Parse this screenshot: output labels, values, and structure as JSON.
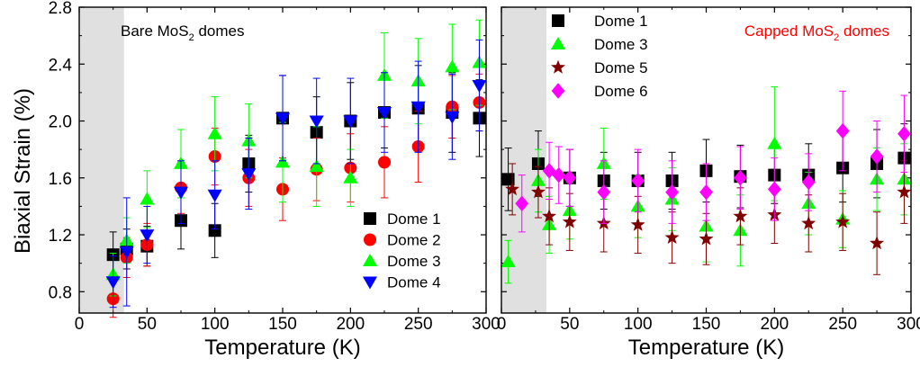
{
  "chart_data": [
    {
      "type": "scatter",
      "panel_label": "Bare MoS",
      "panel_label_sub": "2",
      "panel_label_suffix": " domes",
      "panel_label_color": "#000000",
      "xlabel": "Temperature (K)",
      "ylabel": "Biaxial Strain (%)",
      "xlim": [
        0,
        300
      ],
      "ylim": [
        0.65,
        2.8
      ],
      "xticks": [
        0,
        50,
        100,
        150,
        200,
        250,
        300
      ],
      "yticks": [
        0.8,
        1.2,
        1.6,
        2.0,
        2.4,
        2.8
      ],
      "ytick_labels": [
        "0.8",
        "1.2",
        "1.6",
        "2.0",
        "2.4",
        "2.8"
      ],
      "shaded_region": [
        0,
        33
      ],
      "legend_position": "lower-right",
      "series": [
        {
          "name": "Dome 1",
          "marker": "square",
          "color": "#000000",
          "x": [
            25,
            35,
            50,
            75,
            100,
            125,
            150,
            175,
            200,
            225,
            250,
            275,
            295
          ],
          "y": [
            1.06,
            1.1,
            1.12,
            1.3,
            1.23,
            1.7,
            2.02,
            1.92,
            2.0,
            2.06,
            2.09,
            2.06,
            2.02
          ],
          "err": [
            0.16,
            0.14,
            0.14,
            0.2,
            0.19,
            0.2,
            0.3,
            0.25,
            0.27,
            0.25,
            0.3,
            0.28,
            0.27
          ]
        },
        {
          "name": "Dome 2",
          "marker": "circle",
          "color": "#ff0000",
          "x": [
            25,
            35,
            50,
            75,
            100,
            125,
            150,
            175,
            200,
            225,
            250,
            275,
            295
          ],
          "y": [
            0.75,
            1.04,
            1.13,
            1.53,
            1.75,
            1.6,
            1.52,
            1.66,
            1.67,
            1.71,
            1.82,
            2.1,
            2.13
          ],
          "err": [
            0.13,
            0.14,
            0.15,
            0.18,
            0.2,
            0.2,
            0.22,
            0.22,
            0.24,
            0.25,
            0.25,
            0.22,
            0.2
          ]
        },
        {
          "name": "Dome 3",
          "marker": "triangle-up",
          "color": "#00ff00",
          "x": [
            25,
            35,
            50,
            75,
            100,
            125,
            150,
            175,
            200,
            225,
            250,
            275,
            295
          ],
          "y": [
            0.92,
            1.16,
            1.45,
            1.7,
            1.91,
            1.86,
            1.71,
            1.68,
            1.6,
            2.32,
            2.28,
            2.38,
            2.41
          ],
          "err": [
            0.15,
            0.16,
            0.2,
            0.24,
            0.26,
            0.26,
            0.28,
            0.28,
            0.2,
            0.3,
            0.3,
            0.3,
            0.3
          ]
        },
        {
          "name": "Dome 4",
          "marker": "triangle-down",
          "color": "#0000ff",
          "x": [
            25,
            35,
            50,
            75,
            100,
            125,
            150,
            175,
            200,
            225,
            250,
            275,
            295
          ],
          "y": [
            0.87,
            1.08,
            1.2,
            1.5,
            1.48,
            1.63,
            2.02,
            2.0,
            2.0,
            2.06,
            2.1,
            2.03,
            2.25
          ],
          "err": [
            0.18,
            0.38,
            0.2,
            0.22,
            0.24,
            0.25,
            0.3,
            0.3,
            0.3,
            0.28,
            0.32,
            0.3,
            0.32
          ]
        }
      ]
    },
    {
      "type": "scatter",
      "panel_label": "Capped MoS",
      "panel_label_sub": "2",
      "panel_label_suffix": " domes",
      "panel_label_color": "#ff0000",
      "xlabel": "Temperature (K)",
      "ylabel": "",
      "xlim": [
        0,
        300
      ],
      "ylim": [
        0.65,
        2.8
      ],
      "xticks": [
        0,
        50,
        100,
        150,
        200,
        250,
        300
      ],
      "yticks": [
        0.8,
        1.2,
        1.6,
        2.0,
        2.4,
        2.8
      ],
      "ytick_labels": [],
      "shaded_region": [
        0,
        33
      ],
      "legend_position": "top-left",
      "series": [
        {
          "name": "Dome 1",
          "marker": "square",
          "color": "#000000",
          "x": [
            5,
            27,
            50,
            75,
            100,
            125,
            150,
            175,
            200,
            225,
            250,
            275,
            295
          ],
          "y": [
            1.59,
            1.7,
            1.6,
            1.58,
            1.58,
            1.58,
            1.65,
            1.61,
            1.62,
            1.62,
            1.67,
            1.7,
            1.74
          ],
          "err": [
            0.22,
            0.23,
            0.2,
            0.2,
            0.2,
            0.2,
            0.22,
            0.22,
            0.2,
            0.22,
            0.24,
            0.24,
            0.24
          ]
        },
        {
          "name": "Dome 3",
          "marker": "triangle-up",
          "color": "#00ff00",
          "x": [
            5,
            27,
            35,
            50,
            75,
            100,
            125,
            150,
            175,
            200,
            225,
            250,
            275,
            295
          ],
          "y": [
            1.01,
            1.58,
            1.27,
            1.37,
            1.7,
            1.4,
            1.45,
            1.26,
            1.23,
            1.84,
            1.42,
            1.31,
            1.59,
            1.59
          ],
          "err": [
            0.15,
            0.22,
            0.2,
            0.2,
            0.25,
            0.22,
            0.22,
            0.25,
            0.25,
            0.4,
            0.22,
            0.2,
            0.22,
            0.25
          ]
        },
        {
          "name": "Dome 5",
          "marker": "star",
          "color": "#800000",
          "x": [
            8,
            27,
            35,
            50,
            75,
            100,
            125,
            150,
            175,
            200,
            225,
            250,
            275,
            295
          ],
          "y": [
            1.52,
            1.5,
            1.33,
            1.29,
            1.28,
            1.27,
            1.18,
            1.17,
            1.33,
            1.34,
            1.28,
            1.29,
            1.14,
            1.5
          ],
          "err": [
            0.18,
            0.18,
            0.2,
            0.2,
            0.2,
            0.2,
            0.18,
            0.18,
            0.2,
            0.2,
            0.2,
            0.2,
            0.22,
            0.22
          ]
        },
        {
          "name": "Dome 6",
          "marker": "diamond",
          "color": "#ff00ff",
          "x": [
            15,
            35,
            42,
            50,
            75,
            100,
            125,
            150,
            175,
            200,
            225,
            250,
            275,
            295
          ],
          "y": [
            1.42,
            1.65,
            1.62,
            1.6,
            1.5,
            1.58,
            1.5,
            1.5,
            1.6,
            1.52,
            1.57,
            1.93,
            1.75,
            1.91
          ],
          "err": [
            0.2,
            0.2,
            0.2,
            0.2,
            0.22,
            0.22,
            0.22,
            0.2,
            0.22,
            0.22,
            0.2,
            0.28,
            0.25,
            0.27
          ]
        }
      ]
    }
  ]
}
